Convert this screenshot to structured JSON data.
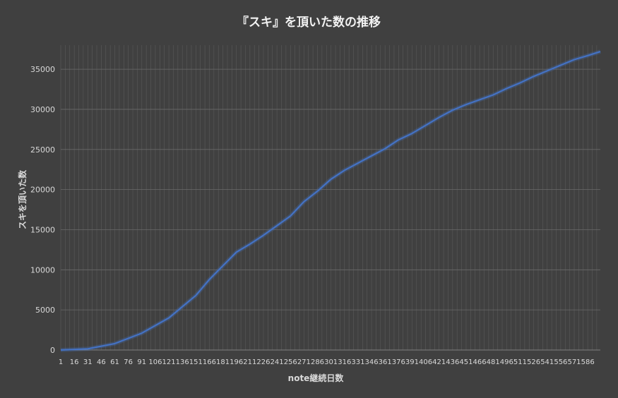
{
  "chart_data": {
    "type": "line",
    "title": "『スキ』を頂いた数の推移",
    "xlabel": "note継続日数",
    "ylabel": "スキを頂いた数",
    "x_range": [
      1,
      600
    ],
    "xticks": [
      1,
      16,
      31,
      46,
      61,
      76,
      91,
      106,
      121,
      136,
      151,
      166,
      181,
      196,
      211,
      226,
      241,
      256,
      271,
      286,
      301,
      316,
      331,
      346,
      361,
      376,
      391,
      406,
      421,
      436,
      451,
      466,
      481,
      496,
      511,
      526,
      541,
      556,
      571,
      586
    ],
    "ylim": [
      0,
      38000
    ],
    "yticks": [
      0,
      5000,
      10000,
      15000,
      20000,
      25000,
      30000,
      35000
    ],
    "grid": true,
    "legend": "none",
    "series": [
      {
        "color": "#4472C4",
        "x": [
          1,
          31,
          61,
          91,
          121,
          151,
          166,
          181,
          196,
          211,
          226,
          241,
          256,
          271,
          286,
          301,
          316,
          331,
          346,
          361,
          376,
          391,
          406,
          421,
          436,
          451,
          466,
          481,
          496,
          511,
          526,
          541,
          556,
          571,
          586,
          600
        ],
        "y": [
          0,
          150,
          800,
          2100,
          4000,
          6800,
          8800,
          10500,
          12200,
          13200,
          14300,
          15500,
          16700,
          18500,
          19800,
          21300,
          22400,
          23300,
          24200,
          25100,
          26200,
          27000,
          28000,
          29000,
          29900,
          30600,
          31200,
          31800,
          32600,
          33300,
          34100,
          34800,
          35500,
          36200,
          36700,
          37200
        ]
      }
    ]
  }
}
